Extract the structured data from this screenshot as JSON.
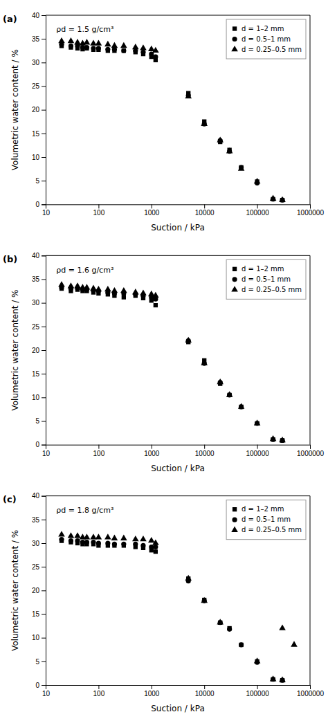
{
  "chart_data": [
    {
      "type": "scatter",
      "title": "(a)",
      "annotations": [
        "ρd = 1.5 g/cm³"
      ],
      "xlabel": "Suction / kPa",
      "ylabel": "Volumetric water content / %",
      "log": "x",
      "grid": false,
      "legend": "upper right",
      "xlim": [
        10,
        1000000
      ],
      "xticks": [
        10,
        100,
        1000,
        10000,
        100000,
        1000000
      ],
      "ylim": [
        0,
        40
      ],
      "yticks": [
        0,
        5,
        10,
        15,
        20,
        25,
        30,
        35,
        40
      ],
      "series": [
        {
          "name": "d = 1–2 mm",
          "marker": "square",
          "color": "#000000",
          "x": [
            20,
            30,
            40,
            50,
            60,
            80,
            100,
            150,
            200,
            300,
            500,
            700,
            1000,
            1200,
            5000,
            10000,
            20000,
            30000,
            50000,
            100000,
            200000,
            300000
          ],
          "values": [
            33.5,
            33.2,
            33.0,
            32.8,
            33.0,
            32.7,
            32.7,
            32.5,
            32.5,
            32.5,
            32.2,
            31.8,
            31.2,
            30.5,
            23.5,
            17.5,
            13.2,
            11.5,
            7.8,
            4.8,
            1.1,
            0.9
          ]
        },
        {
          "name": "d = 0.5–1 mm",
          "marker": "circle",
          "color": "#000000",
          "x": [
            20,
            30,
            40,
            50,
            60,
            80,
            100,
            150,
            200,
            300,
            500,
            700,
            1000,
            1200,
            5000,
            10000,
            20000,
            30000,
            50000,
            100000,
            200000,
            300000
          ],
          "values": [
            33.8,
            33.5,
            33.5,
            33.2,
            33.2,
            33.0,
            33.0,
            32.8,
            32.8,
            32.5,
            32.5,
            32.2,
            31.8,
            31.2,
            23.0,
            17.0,
            13.5,
            11.2,
            7.8,
            4.5,
            1.1,
            0.9
          ]
        },
        {
          "name": "d = 0.25–0.5 mm",
          "marker": "triangle",
          "color": "#000000",
          "x": [
            20,
            30,
            40,
            50,
            60,
            80,
            100,
            150,
            200,
            300,
            500,
            700,
            1000,
            1200,
            5000,
            10000,
            20000,
            30000,
            50000,
            100000,
            200000,
            300000
          ],
          "values": [
            34.5,
            34.5,
            34.2,
            34.0,
            34.2,
            34.0,
            34.0,
            33.8,
            33.5,
            33.5,
            33.2,
            33.0,
            32.8,
            32.5,
            22.8,
            17.0,
            13.5,
            11.2,
            7.5,
            4.8,
            1.2,
            0.9
          ]
        }
      ]
    },
    {
      "type": "scatter",
      "title": "(b)",
      "annotations": [
        "ρd = 1.6 g/cm³"
      ],
      "xlabel": "Suction / kPa",
      "ylabel": "Volumetric water content / %",
      "log": "x",
      "grid": false,
      "legend": "upper right",
      "xlim": [
        10,
        1000000
      ],
      "xticks": [
        10,
        100,
        1000,
        10000,
        100000,
        1000000
      ],
      "ylim": [
        0,
        40
      ],
      "yticks": [
        0,
        5,
        10,
        15,
        20,
        25,
        30,
        35,
        40
      ],
      "series": [
        {
          "name": "d = 1–2 mm",
          "marker": "square",
          "color": "#000000",
          "x": [
            20,
            30,
            40,
            50,
            60,
            80,
            100,
            150,
            200,
            300,
            500,
            700,
            1000,
            1200,
            5000,
            10000,
            20000,
            30000,
            50000,
            100000,
            200000,
            300000
          ],
          "values": [
            33.0,
            32.5,
            32.8,
            32.5,
            32.5,
            32.2,
            32.0,
            31.8,
            31.5,
            31.2,
            31.5,
            31.0,
            30.5,
            29.5,
            21.7,
            17.8,
            12.9,
            10.5,
            8.0,
            4.5,
            1.1,
            0.9
          ]
        },
        {
          "name": "d = 0.5–1 mm",
          "marker": "circle",
          "color": "#000000",
          "x": [
            20,
            30,
            40,
            50,
            60,
            80,
            100,
            150,
            200,
            300,
            500,
            700,
            1000,
            1200,
            5000,
            10000,
            20000,
            30000,
            50000,
            100000,
            200000,
            300000
          ],
          "values": [
            33.2,
            33.0,
            33.0,
            32.8,
            32.8,
            32.5,
            32.5,
            32.2,
            32.0,
            32.0,
            31.8,
            31.5,
            31.2,
            30.8,
            22.0,
            17.2,
            13.2,
            10.5,
            8.0,
            4.5,
            1.1,
            0.9
          ]
        },
        {
          "name": "d = 0.25–0.5 mm",
          "marker": "triangle",
          "color": "#000000",
          "x": [
            20,
            30,
            40,
            50,
            60,
            80,
            100,
            150,
            200,
            300,
            500,
            700,
            1000,
            1200,
            5000,
            10000,
            20000,
            30000,
            50000,
            100000,
            200000,
            300000
          ],
          "values": [
            33.8,
            33.5,
            33.5,
            33.2,
            33.2,
            33.0,
            32.8,
            32.8,
            32.5,
            32.5,
            32.2,
            32.0,
            31.8,
            31.5,
            22.0,
            17.2,
            13.2,
            10.5,
            8.0,
            4.5,
            1.2,
            0.9
          ]
        }
      ]
    },
    {
      "type": "scatter",
      "title": "(c)",
      "annotations": [
        "ρd = 1.8 g/cm³"
      ],
      "xlabel": "Suction / kPa",
      "ylabel": "Volumetric water content / %",
      "log": "x",
      "grid": false,
      "legend": "upper right",
      "xlim": [
        10,
        1000000
      ],
      "xticks": [
        10,
        100,
        1000,
        10000,
        100000,
        1000000
      ],
      "ylim": [
        0,
        40
      ],
      "yticks": [
        0,
        5,
        10,
        15,
        20,
        25,
        30,
        35,
        40
      ],
      "series": [
        {
          "name": "d = 1–2 mm",
          "marker": "square",
          "color": "#000000",
          "x": [
            20,
            30,
            40,
            50,
            60,
            80,
            100,
            150,
            200,
            300,
            500,
            700,
            1000,
            1200,
            5000,
            10000,
            20000,
            30000,
            50000,
            100000,
            200000,
            300000
          ],
          "values": [
            30.5,
            30.2,
            30.0,
            29.8,
            29.8,
            29.8,
            29.5,
            29.5,
            29.5,
            29.5,
            29.2,
            29.0,
            28.5,
            28.2,
            22.5,
            18.0,
            13.2,
            12.0,
            8.5,
            5.0,
            1.2,
            1.0
          ]
        },
        {
          "name": "d = 0.5–1 mm",
          "marker": "circle",
          "color": "#000000",
          "x": [
            20,
            30,
            40,
            50,
            60,
            80,
            100,
            150,
            200,
            300,
            500,
            700,
            1000,
            1200,
            5000,
            10000,
            20000,
            30000,
            50000,
            100000,
            200000,
            300000
          ],
          "values": [
            30.8,
            30.5,
            30.5,
            30.2,
            30.2,
            30.2,
            30.0,
            30.0,
            29.8,
            29.8,
            29.8,
            29.5,
            29.2,
            29.2,
            22.0,
            17.8,
            13.2,
            11.8,
            8.5,
            4.8,
            1.2,
            1.0
          ]
        },
        {
          "name": "d = 0.25–0.5 mm",
          "marker": "triangle",
          "color": "#000000",
          "x": [
            20,
            30,
            40,
            50,
            60,
            80,
            100,
            150,
            200,
            300,
            500,
            700,
            1000,
            1200,
            5000,
            10000,
            20000,
            300000,
            500000,
            100000,
            200000,
            300000
          ],
          "values": [
            31.8,
            31.5,
            31.5,
            31.2,
            31.2,
            31.2,
            31.2,
            31.2,
            31.0,
            31.0,
            30.8,
            30.8,
            30.5,
            30.0,
            22.5,
            17.8,
            13.2,
            12.0,
            8.5,
            5.0,
            1.2,
            1.0
          ]
        }
      ]
    }
  ]
}
